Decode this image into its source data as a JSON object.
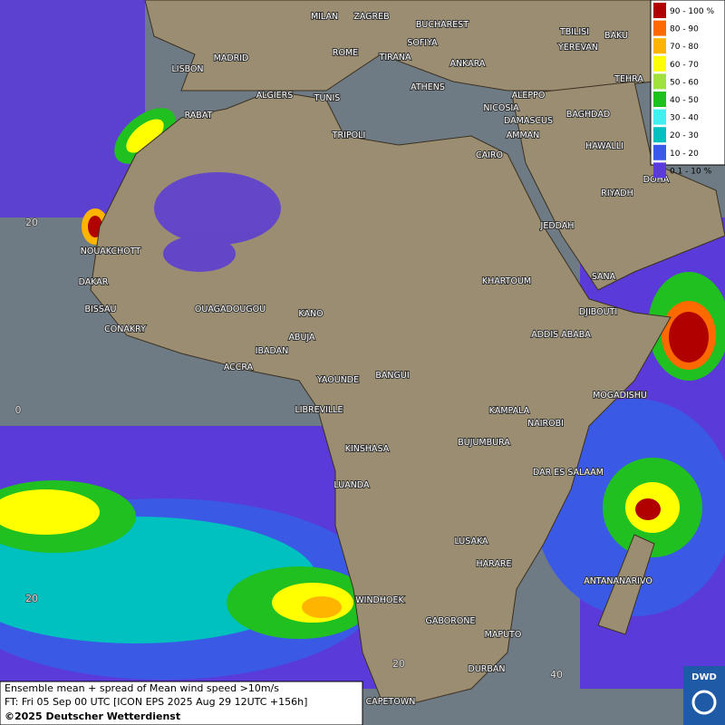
{
  "legend": [
    {
      "label": "90 - 100 %",
      "color": "#b00000"
    },
    {
      "label": "80 - 90",
      "color": "#ff6a00"
    },
    {
      "label": "70 - 80",
      "color": "#ffb400"
    },
    {
      "label": "60 - 70",
      "color": "#ffff00"
    },
    {
      "label": "50 - 60",
      "color": "#a0e040"
    },
    {
      "label": "40 - 50",
      "color": "#20c020"
    },
    {
      "label": "30 - 40",
      "color": "#40f0f0"
    },
    {
      "label": "20 - 30",
      "color": "#00c0c0"
    },
    {
      "label": "10 - 20",
      "color": "#3a5ae6"
    },
    {
      "label": "0.1 - 10 %",
      "color": "#5a3ad8"
    }
  ],
  "cities": [
    "MILAN",
    "ZAGREB",
    "BUCHAREST",
    "MADRID",
    "LISBON",
    "ROME",
    "SOFIYA",
    "TIRANA",
    "ANKARA",
    "TBILISI",
    "YEREVAN",
    "BAKU",
    "TEHRA",
    "ALGIERS",
    "TUNIS",
    "ATHENS",
    "ALEPPO",
    "RABAT",
    "NICOSIA",
    "BAGHDAD",
    "DAMASCUS",
    "AMMAN",
    "TRIPOLI",
    "HAWALLI",
    "CAIRO",
    "DOHA",
    "RIYADH",
    "JEDDAH",
    "NOUAKCHOTT",
    "SANA",
    "DAKAR",
    "KHARTOUM",
    "BISSAU",
    "OUAGADOUGOU",
    "KANO",
    "DJIBOUTI",
    "CONAKRY",
    "ABUJA",
    "ADDIS ABABA",
    "IBADAN",
    "ACCRA",
    "YAOUNDE",
    "BANGUI",
    "MOGADISHU",
    "LIBREVILLE",
    "KAMPALA",
    "NAIROBI",
    "BUJUMBURA",
    "KINSHASA",
    "DAR ES SALAAM",
    "LUANDA",
    "LUSAKA",
    "HARARE",
    "ANTANANARIVO",
    "WINDHOEK",
    "GABORONE",
    "MAPUTO",
    "DURBAN",
    "CAPETOWN"
  ],
  "grid_labels": [
    "20",
    "0",
    "20",
    "20",
    "40"
  ],
  "footer": {
    "line1": "Ensemble mean + spread of Mean wind speed >10m/s",
    "line2": "FT: Fri 05 Sep 00 UTC [ICON EPS 2025 Aug 29 12UTC +156h]",
    "copyright": "©2025 Deutscher Wetterdienst"
  },
  "logo": "DWD"
}
